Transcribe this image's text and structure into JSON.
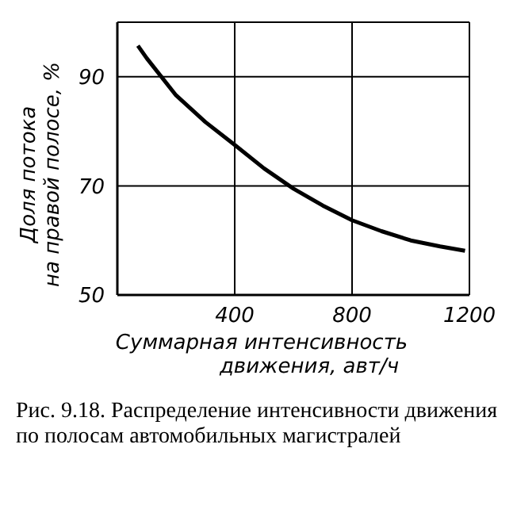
{
  "chart_data": {
    "type": "line",
    "xlabel": "Суммарная интенсивность\nдвижения, авт/ч",
    "ylabel": "Доля потока\nна правой полосе, %",
    "x": [
      70,
      100,
      200,
      300,
      400,
      500,
      600,
      700,
      800,
      900,
      1000,
      1100,
      1185
    ],
    "series": [
      {
        "color": "#000000",
        "values": [
          95.7,
          93.4,
          86.6,
          81.7,
          77.5,
          73.2,
          69.5,
          66.4,
          63.7,
          61.7,
          60,
          58.9,
          58.1
        ]
      }
    ],
    "xlim": [
      0,
      1200
    ],
    "xticks": [
      400,
      800,
      1200
    ],
    "ylim": [
      50,
      100
    ],
    "yticks": [
      50,
      70,
      90
    ],
    "grid": true,
    "legend": false,
    "marker": "none",
    "line_style": "solid",
    "annotations": [
      "Рис. 9.18. Распределение интенсивности движения по полосам автомобильных магистралей"
    ]
  }
}
